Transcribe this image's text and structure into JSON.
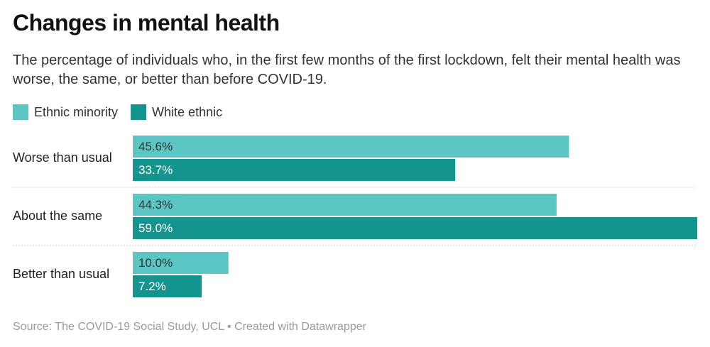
{
  "chart_data": {
    "type": "bar",
    "orientation": "horizontal",
    "title": "Changes in mental health",
    "subtitle": "The percentage of individuals who, in the first few months of the first lockdown, felt their mental health was worse, the same, or better than before COVID-19.",
    "categories": [
      "Worse than usual",
      "About the same",
      "Better than usual"
    ],
    "series": [
      {
        "name": "Ethnic minority",
        "color": "#5bc6c4",
        "values": [
          45.6,
          44.3,
          10.0
        ],
        "value_labels": [
          "45.6%",
          "44.3%",
          "10.0%"
        ]
      },
      {
        "name": "White ethnic",
        "color": "#13948f",
        "values": [
          33.7,
          59.0,
          7.2
        ],
        "value_labels": [
          "33.7%",
          "59.0%",
          "7.2%"
        ]
      }
    ],
    "source": "Source: The COVID-19 Social Study, UCL • Created with Datawrapper"
  }
}
